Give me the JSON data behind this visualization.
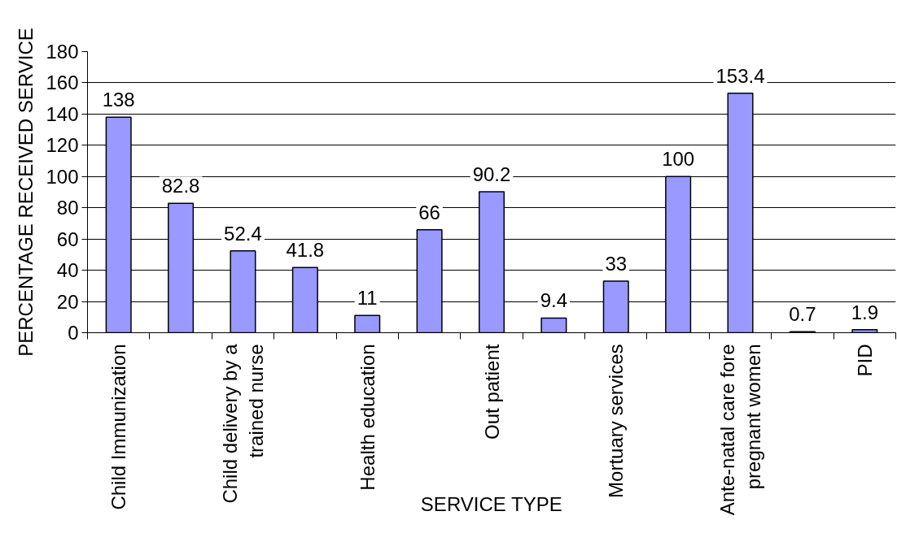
{
  "chart_data": {
    "type": "bar",
    "xlabel": "SERVICE TYPE",
    "ylabel": "PERCENTAGE RECEIVED SERVICE",
    "categories": [
      "Child Immunization",
      null,
      "Child delivery by a trained nurse",
      null,
      "Health education",
      null,
      "Out patient",
      null,
      "Mortuary services",
      null,
      "Ante-natal care fore pregnant women",
      null,
      "PID"
    ],
    "values": [
      138,
      82.8,
      52.4,
      41.8,
      11,
      66,
      90.2,
      9.4,
      33,
      100,
      153.4,
      0.7,
      1.9
    ],
    "color": "#9999ff",
    "ylim": [
      0,
      180
    ],
    "yticks": [
      0,
      20,
      40,
      60,
      80,
      100,
      120,
      140,
      160,
      180
    ],
    "grid": "y",
    "data_labels": true
  }
}
